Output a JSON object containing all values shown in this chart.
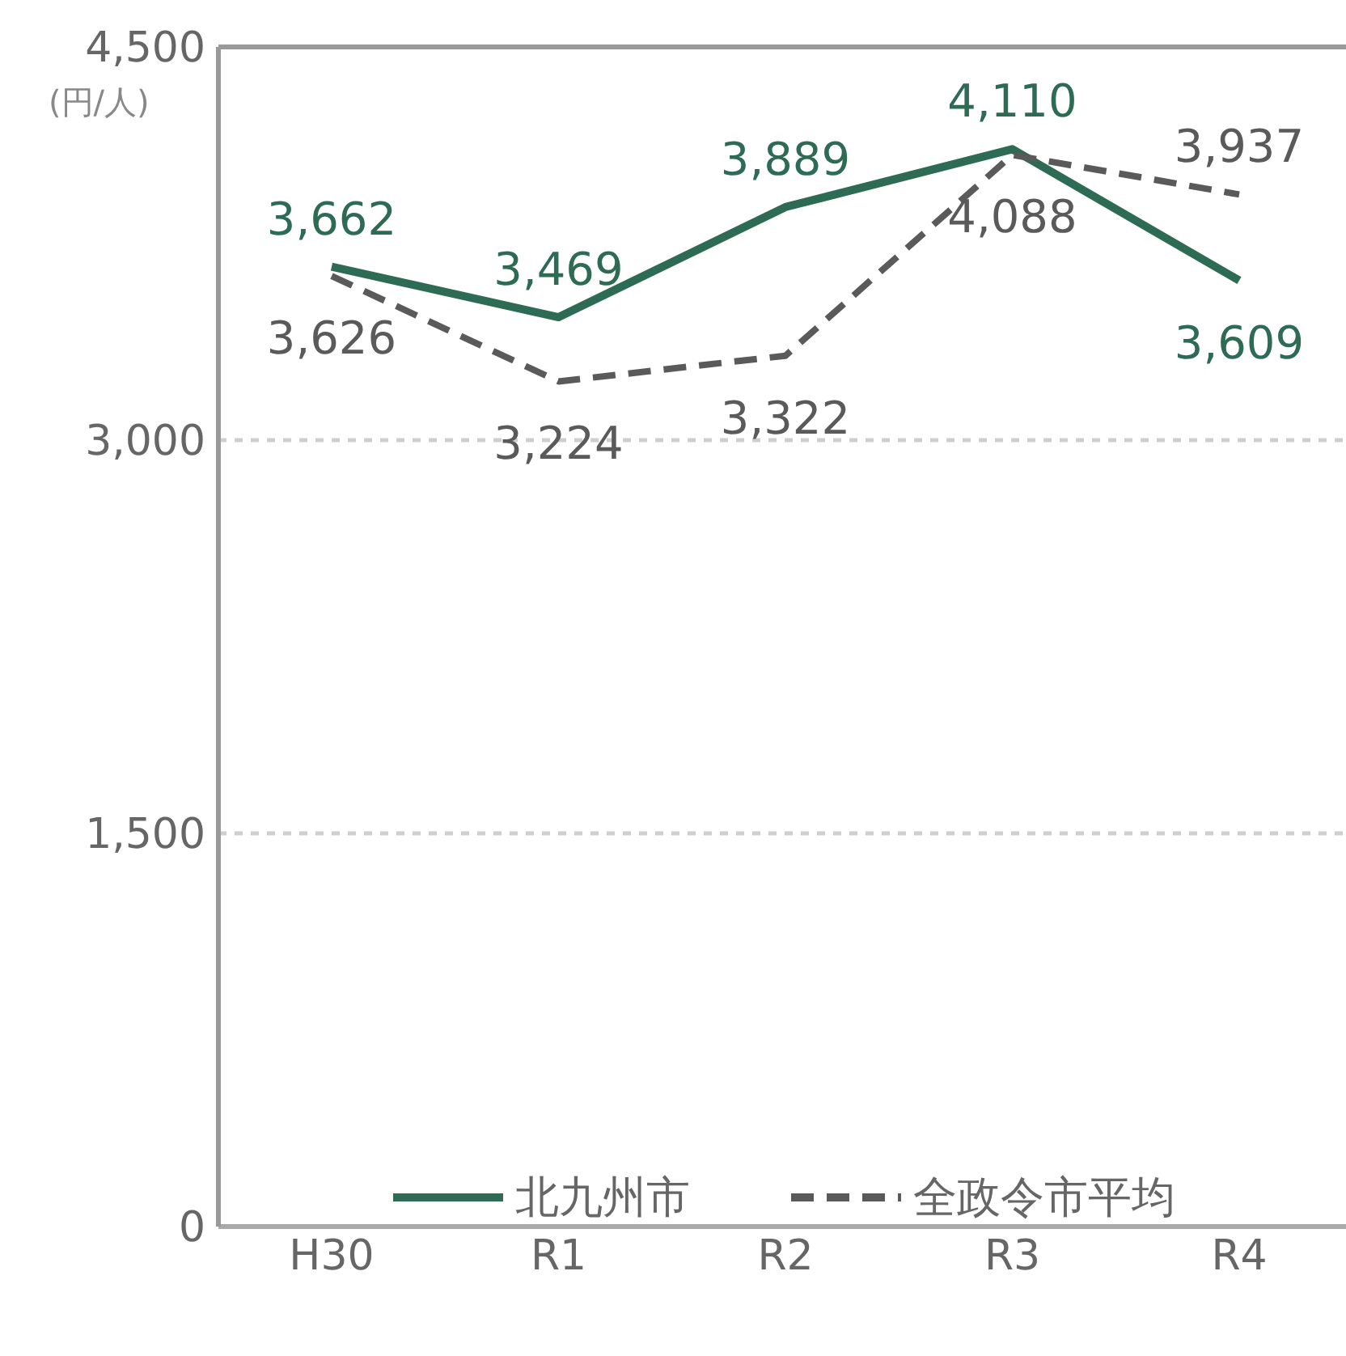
{
  "chart_data": {
    "type": "line",
    "ylabel": "(円/人)",
    "categories": [
      "H30",
      "R1",
      "R2",
      "R3",
      "R4"
    ],
    "series": [
      {
        "name": "北九州市",
        "color": "#2e6b55",
        "line_style": "solid",
        "values": [
          3662,
          3469,
          3889,
          4110,
          3609
        ],
        "value_labels": [
          "3,662",
          "3,469",
          "3,889",
          "4,110",
          "3,609"
        ]
      },
      {
        "name": "全政令市平均",
        "color": "#5a5a5a",
        "line_style": "dashed",
        "values": [
          3626,
          3224,
          3322,
          4088,
          3937
        ],
        "value_labels": [
          "3,626",
          "3,224",
          "3,322",
          "4,088",
          "3,937"
        ]
      }
    ],
    "ylim": [
      0,
      4500
    ],
    "yticks": [
      {
        "value": 0,
        "label": "0"
      },
      {
        "value": 1500,
        "label": "1,500"
      },
      {
        "value": 3000,
        "label": "3,000"
      },
      {
        "value": 4500,
        "label": "4,500"
      }
    ],
    "grid": "y",
    "legend": "bottom",
    "marker": "none"
  }
}
